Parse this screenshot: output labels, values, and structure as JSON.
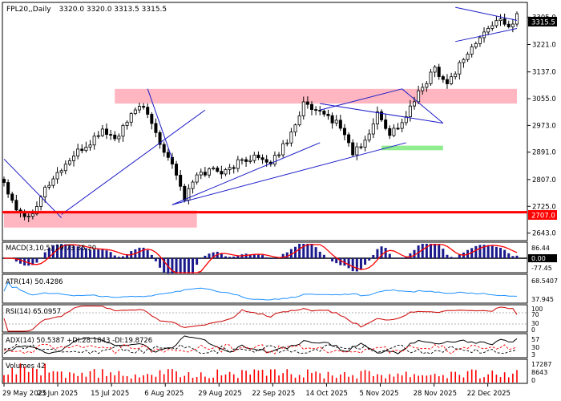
{
  "header": {
    "symbol": "FPL20,,Daily",
    "ohlc": "3320.0 3320.0 3313.5 3315.5"
  },
  "price_axis": {
    "ticks": [
      "3305.0",
      "3221.0",
      "3137.0",
      "3055.0",
      "2973.0",
      "2891.0",
      "2807.0",
      "2725.0",
      "2643.0"
    ],
    "last_price": "3315.5",
    "support_level": "2707.0"
  },
  "time_axis": {
    "labels": [
      "29 May 2025",
      "23 Jun 2025",
      "15 Jul 2025",
      "6 Aug 2025",
      "29 Aug 2025",
      "22 Sep 2025",
      "14 Oct 2025",
      "5 Nov 2025",
      "28 Nov 2025",
      "22 Dec 2025"
    ]
  },
  "panels": {
    "macd": {
      "label": "MACD(3,10,5) 29.73 35.20",
      "ticks": [
        "86.44",
        "0.00",
        "-77.45"
      ]
    },
    "atr": {
      "label": "ATR(14) 50.4286",
      "ticks": [
        "68.5407",
        "37.945"
      ]
    },
    "rsi": {
      "label": "RSI(14) 65.0957",
      "ticks": [
        "100",
        "70",
        "30",
        "0"
      ]
    },
    "adx": {
      "label": "ADX(14) 50.5387 +DI:28.1843 -DI:19.8726",
      "ticks": [
        "57",
        "30",
        "3"
      ]
    },
    "volumes": {
      "label": "Volumes 42",
      "ticks": [
        "17287",
        "8643",
        "0"
      ]
    }
  },
  "colors": {
    "candle": "#000000",
    "zone": "#ffb6c1",
    "green_zone": "#90ee90",
    "trendline": "#1c1cc8",
    "support": "#ff0000",
    "macd_hist": "#1a1a8c",
    "macd_signal": "#ff0000",
    "atr": "#1e90ff",
    "rsi": "#cc0000",
    "adx": "#000000",
    "plus_di": "#ff0000",
    "minus_di": "#000000",
    "volume": "#ff0000"
  },
  "chart_data": {
    "type": "candlestick",
    "symbol": "FPL20",
    "timeframe": "Daily",
    "date_labels": [
      "29 May 2025",
      "23 Jun 2025",
      "15 Jul 2025",
      "6 Aug 2025",
      "29 Aug 2025",
      "22 Sep 2025",
      "14 Oct 2025",
      "5 Nov 2025",
      "28 Nov 2025",
      "22 Dec 2025"
    ],
    "ylim": [
      2620,
      3350
    ],
    "close_path": [
      [
        0,
        2800
      ],
      [
        3,
        2720
      ],
      [
        6,
        2690
      ],
      [
        10,
        2780
      ],
      [
        14,
        2840
      ],
      [
        17,
        2880
      ],
      [
        21,
        2920
      ],
      [
        24,
        2960
      ],
      [
        27,
        2930
      ],
      [
        30,
        2980
      ],
      [
        33,
        3040
      ],
      [
        36,
        2980
      ],
      [
        38,
        2920
      ],
      [
        41,
        2860
      ],
      [
        44,
        2750
      ],
      [
        47,
        2820
      ],
      [
        51,
        2840
      ],
      [
        54,
        2830
      ],
      [
        57,
        2860
      ],
      [
        61,
        2880
      ],
      [
        64,
        2850
      ],
      [
        67,
        2890
      ],
      [
        70,
        2950
      ],
      [
        73,
        3040
      ],
      [
        76,
        3010
      ],
      [
        79,
        3000
      ],
      [
        82,
        2970
      ],
      [
        85,
        2890
      ],
      [
        88,
        2920
      ],
      [
        91,
        3010
      ],
      [
        94,
        2950
      ],
      [
        97,
        2980
      ],
      [
        101,
        3070
      ],
      [
        105,
        3150
      ],
      [
        108,
        3100
      ],
      [
        112,
        3180
      ],
      [
        116,
        3240
      ],
      [
        120,
        3300
      ],
      [
        123,
        3270
      ],
      [
        125,
        3315.5
      ]
    ],
    "last_close": 3315.5,
    "pink_zones": [
      {
        "from": 0,
        "to": 47,
        "low": 2660,
        "high": 2712
      },
      {
        "from": 27,
        "to": 125,
        "low": 3040,
        "high": 3085
      }
    ],
    "green_zone": {
      "from": 92,
      "to": 107,
      "low": 2897,
      "high": 2911
    },
    "trendlines": [
      {
        "from": [
          0,
          2870
        ],
        "to": [
          14,
          2690
        ]
      },
      {
        "from": [
          14,
          2700
        ],
        "to": [
          49,
          3020
        ]
      },
      {
        "from": [
          35,
          3085
        ],
        "to": [
          41,
          2870
        ]
      },
      {
        "from": [
          41,
          2730
        ],
        "to": [
          98,
          2920
        ]
      },
      {
        "from": [
          41,
          2730
        ],
        "to": [
          77,
          2920
        ]
      },
      {
        "from": [
          77,
          3020
        ],
        "to": [
          97,
          3085
        ]
      },
      {
        "from": [
          97,
          3085
        ],
        "to": [
          107,
          2980
        ]
      },
      {
        "from": [
          77,
          3040
        ],
        "to": [
          107,
          2980
        ]
      },
      {
        "from": [
          110,
          3335
        ],
        "to": [
          125,
          3295
        ]
      },
      {
        "from": [
          110,
          3230
        ],
        "to": [
          125,
          3270
        ]
      }
    ],
    "support_line": 2707.0,
    "indicators": {
      "macd": {
        "params": [
          3,
          10,
          5
        ],
        "macd": 29.73,
        "signal": 35.2
      },
      "atr": {
        "period": 14,
        "value": 50.4286
      },
      "rsi": {
        "period": 14,
        "value": 65.0957,
        "levels": [
          70,
          30
        ]
      },
      "adx": {
        "period": 14,
        "adx": 50.5387,
        "plus_di": 28.1843,
        "minus_di": 19.8726
      },
      "volumes": {
        "last": 42
      }
    }
  }
}
